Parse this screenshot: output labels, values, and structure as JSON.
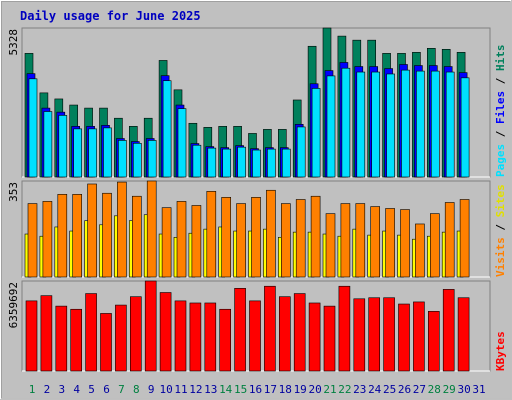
{
  "chart_data": [
    {
      "type": "bar",
      "title": "Daily usage for June 2025",
      "legend_separator": " / ",
      "ylim": [
        0,
        5328
      ],
      "yticks": [
        5328
      ],
      "series": [
        {
          "name": "Hits",
          "color": "#00805c",
          "values": [
            4421,
            3008,
            2791,
            2573,
            2464,
            2464,
            2102,
            1812,
            2102,
            4168,
            3117,
            1921,
            1776,
            1812,
            1812,
            1558,
            1703,
            1703,
            2754,
            4675,
            5328,
            5038,
            4893,
            4893,
            4421,
            4421,
            4458,
            4602,
            4566,
            4458,
            null
          ]
        },
        {
          "name": "Files",
          "color": "#0000ff",
          "values": [
            3696,
            2464,
            2319,
            1812,
            1812,
            1848,
            1377,
            1268,
            1377,
            3624,
            2573,
            1196,
            1087,
            1051,
            1123,
            1015,
            1051,
            1051,
            1884,
            3334,
            3805,
            4095,
            3950,
            3950,
            3878,
            4023,
            3986,
            3986,
            3950,
            3733,
            null
          ]
        },
        {
          "name": "Pages",
          "color": "#00e0ff",
          "values": [
            3511,
            2341,
            2203,
            1721,
            1721,
            1756,
            1308,
            1205,
            1308,
            3443,
            2444,
            1136,
            1033,
            998,
            1067,
            964,
            998,
            998,
            1790,
            3167,
            3615,
            3890,
            3753,
            3753,
            3684,
            3822,
            3787,
            3787,
            3753,
            3546,
            null
          ]
        }
      ]
    },
    {
      "type": "bar",
      "legend_separator": " / ",
      "ylim": [
        0,
        353
      ],
      "yticks": [
        353
      ],
      "series": [
        {
          "name": "Sites",
          "color": "#ffff00",
          "values": [
            158,
            150,
            184,
            169,
            207,
            192,
            225,
            207,
            229,
            158,
            146,
            161,
            176,
            184,
            169,
            169,
            176,
            146,
            165,
            165,
            158,
            150,
            176,
            154,
            169,
            154,
            139,
            150,
            165,
            169,
            null
          ]
        },
        {
          "name": "Visits",
          "color": "#ff8000",
          "values": [
            270,
            278,
            304,
            304,
            342,
            308,
            349,
            297,
            353,
            255,
            278,
            263,
            315,
            293,
            270,
            293,
            319,
            270,
            285,
            297,
            233,
            270,
            270,
            259,
            252,
            248,
            195,
            233,
            274,
            285,
            null
          ]
        }
      ]
    },
    {
      "type": "bar",
      "ylim": [
        0,
        6359692
      ],
      "yticks": [
        6359692
      ],
      "categories": [
        "1",
        "2",
        "3",
        "4",
        "5",
        "6",
        "7",
        "8",
        "9",
        "10",
        "11",
        "12",
        "13",
        "14",
        "15",
        "16",
        "17",
        "18",
        "19",
        "20",
        "21",
        "22",
        "23",
        "24",
        "25",
        "26",
        "27",
        "28",
        "29",
        "30",
        "31"
      ],
      "category_colors": [
        "#008040",
        "#0000a0",
        "#0000a0",
        "#0000a0",
        "#0000a0",
        "#0000a0",
        "#008040",
        "#008040",
        "#0000a0",
        "#0000a0",
        "#0000a0",
        "#0000a0",
        "#0000a0",
        "#008040",
        "#008040",
        "#0000a0",
        "#0000a0",
        "#0000a0",
        "#0000a0",
        "#0000a0",
        "#008040",
        "#008040",
        "#0000a0",
        "#0000a0",
        "#0000a0",
        "#0000a0",
        "#0000a0",
        "#008040",
        "#008040",
        "#0000a0",
        "#0000a0"
      ],
      "series": [
        {
          "name": "KBytes",
          "color": "#ff0000",
          "values": [
            4954650,
            5324400,
            4584900,
            4363050,
            5472300,
            4067250,
            4658850,
            5250450,
            6359692,
            5546250,
            4954650,
            4806750,
            4806750,
            4363050,
            5842050,
            4954650,
            5989950,
            5250450,
            5472300,
            4806750,
            4584900,
            5989950,
            5102550,
            5176500,
            5176500,
            4732800,
            4880700,
            4215150,
            5768100,
            5176500,
            null
          ]
        }
      ]
    }
  ]
}
